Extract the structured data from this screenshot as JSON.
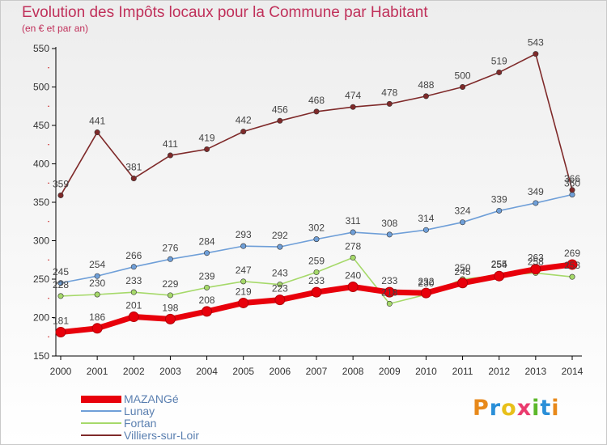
{
  "title": "Evolution des Impôts locaux pour la Commune par Habitant",
  "subtitle": "(en € et par an)",
  "logo": {
    "text": "Proxiti",
    "colors": [
      "#e8891a",
      "#2a8fd8",
      "#e8c01a",
      "#ea3b6e",
      "#5cb82a",
      "#2a8fd8",
      "#e8891a"
    ]
  },
  "chart_data": {
    "type": "line",
    "title": "Evolution des Impôts locaux pour la Commune par Habitant",
    "subtitle": "(en € et par an)",
    "x": [
      2000,
      2001,
      2002,
      2003,
      2004,
      2005,
      2006,
      2007,
      2008,
      2009,
      2010,
      2011,
      2012,
      2013,
      2014
    ],
    "ylim": [
      150,
      550
    ],
    "yticks": [
      150,
      200,
      250,
      300,
      350,
      400,
      450,
      500,
      550
    ],
    "grid": false,
    "series": [
      {
        "name": "MAZANGé",
        "color": "#e8000b",
        "values": [
          181,
          186,
          201,
          198,
          208,
          219,
          223,
          233,
          240,
          233,
          232,
          245,
          254,
          263,
          269
        ],
        "labels": [
          "181",
          "186",
          "201",
          "198",
          "208",
          "219",
          "223",
          "233",
          "240",
          "233",
          "232",
          "245",
          "254",
          "263",
          "269"
        ]
      },
      {
        "name": "Lunay",
        "color": "#6f9fd8",
        "values": [
          245,
          254,
          266,
          276,
          284,
          293,
          292,
          302,
          311,
          308,
          314,
          324,
          339,
          349,
          360
        ],
        "labels": [
          "245",
          "254",
          "266",
          "276",
          "284",
          "293",
          "292",
          "302",
          "311",
          "308",
          "314",
          "324",
          "339",
          "349",
          "360"
        ]
      },
      {
        "name": "Fortan",
        "color": "#a6d96a",
        "values": [
          228,
          230,
          233,
          229,
          239,
          247,
          243,
          259,
          278,
          218,
          230,
          250,
          255,
          258,
          253
        ],
        "labels": [
          "228",
          "230",
          "233",
          "229",
          "239",
          "247",
          "243",
          "259",
          "278",
          "218",
          "230",
          "250",
          "255",
          "258",
          "253"
        ]
      },
      {
        "name": "Villiers-sur-Loir",
        "color": "#7f2a2a",
        "values": [
          359,
          441,
          381,
          411,
          419,
          442,
          456,
          468,
          474,
          478,
          488,
          500,
          519,
          543,
          366
        ],
        "labels": [
          "359",
          "441",
          "381",
          "411",
          "419",
          "442",
          "456",
          "468",
          "474",
          "478",
          "488",
          "500",
          "519",
          "543",
          "366"
        ]
      }
    ]
  }
}
